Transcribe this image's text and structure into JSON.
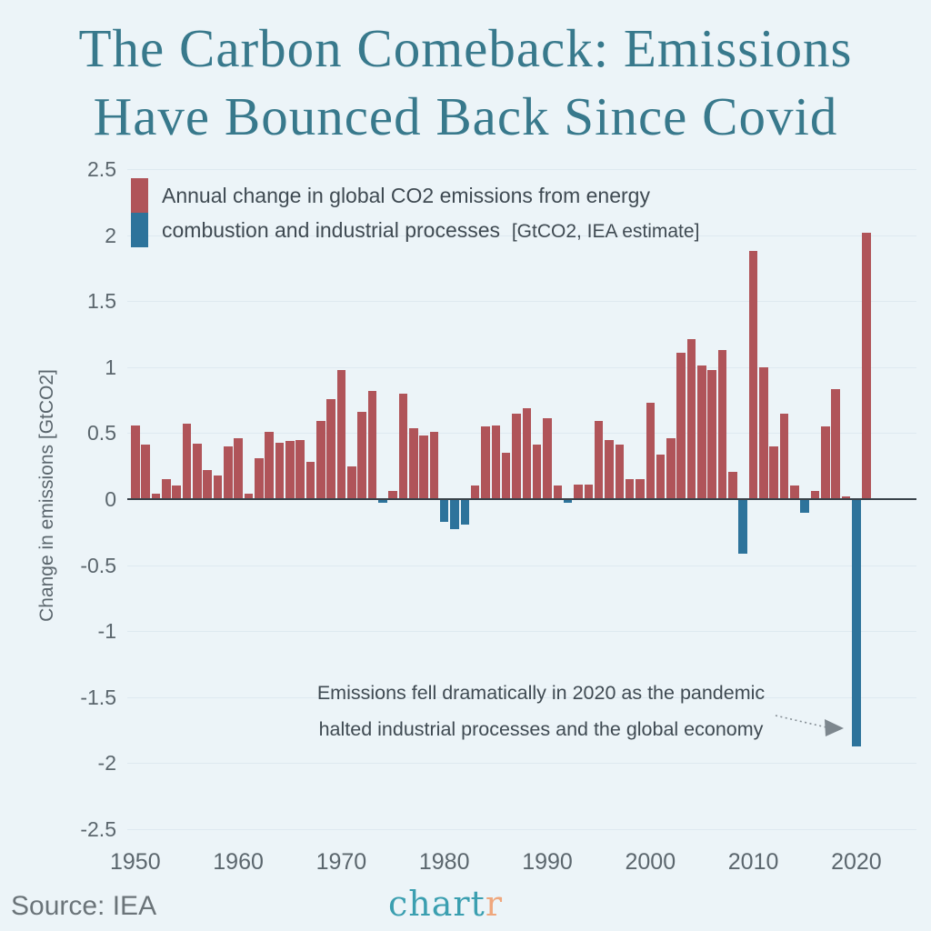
{
  "page": {
    "title_line1": "The Carbon Comeback: Emissions",
    "title_line2": "Have Bounced Back Since Covid"
  },
  "footer": {
    "source": "Source: IEA",
    "logo_part1": "chart",
    "logo_part2": "r"
  },
  "colors": {
    "background": "#ecf4f8",
    "title": "#38798c",
    "bar_positive": "#b05459",
    "bar_negative": "#2d739b",
    "grid": "#dee9f0",
    "zero": "#39424a",
    "tick": "#5b666d",
    "text": "#3f4a52",
    "source": "#6b7479",
    "logo_teal": "#3b9fb0",
    "logo_orange": "#efa77d",
    "arrow": "#868f96"
  },
  "chart_data": {
    "type": "bar",
    "title": "The Carbon Comeback: Emissions Have Bounced Back Since Covid",
    "ylabel": "Change in emissions [GtCO2]",
    "ylim": [
      -2.5,
      2.5
    ],
    "yticks": [
      2.5,
      2,
      1.5,
      1,
      0.5,
      0,
      -0.5,
      -1,
      -1.5,
      -2,
      -2.5
    ],
    "xticks": [
      1950,
      1960,
      1970,
      1980,
      1990,
      2000,
      2010,
      2020
    ],
    "grid": true,
    "legend_position": "top-left",
    "legend": {
      "line1": "Annual change in global CO2 emissions from energy",
      "line2": "combustion and industrial processes",
      "line2_note": "[GtCO2, IEA estimate]"
    },
    "annotation": {
      "line1": "Emissions fell dramatically in 2020 as the pandemic",
      "line2": "halted industrial processes and the global economy"
    },
    "years": [
      1950,
      1951,
      1952,
      1953,
      1954,
      1955,
      1956,
      1957,
      1958,
      1959,
      1960,
      1961,
      1962,
      1963,
      1964,
      1965,
      1966,
      1967,
      1968,
      1969,
      1970,
      1971,
      1972,
      1973,
      1974,
      1975,
      1976,
      1977,
      1978,
      1979,
      1980,
      1981,
      1982,
      1983,
      1984,
      1985,
      1986,
      1987,
      1988,
      1989,
      1990,
      1991,
      1992,
      1993,
      1994,
      1995,
      1996,
      1997,
      1998,
      1999,
      2000,
      2001,
      2002,
      2003,
      2004,
      2005,
      2006,
      2007,
      2008,
      2009,
      2010,
      2011,
      2012,
      2013,
      2014,
      2015,
      2016,
      2017,
      2018,
      2019,
      2020,
      2021
    ],
    "values": [
      0.56,
      0.41,
      0.04,
      0.15,
      0.1,
      0.57,
      0.42,
      0.22,
      0.18,
      0.4,
      0.46,
      0.04,
      0.31,
      0.51,
      0.43,
      0.44,
      0.45,
      0.28,
      0.59,
      0.76,
      0.98,
      0.25,
      0.66,
      0.82,
      -0.03,
      0.06,
      0.8,
      0.54,
      0.48,
      0.51,
      -0.17,
      -0.23,
      -0.19,
      0.1,
      0.55,
      0.56,
      0.35,
      0.65,
      0.69,
      0.41,
      0.61,
      0.1,
      -0.03,
      0.11,
      0.11,
      0.59,
      0.45,
      0.41,
      0.15,
      0.15,
      0.73,
      0.34,
      0.46,
      1.11,
      1.21,
      1.01,
      0.98,
      1.13,
      0.21,
      -0.41,
      1.88,
      1.0,
      0.4,
      0.65,
      0.1,
      -0.1,
      0.06,
      0.55,
      0.83,
      0.02,
      -1.87,
      2.02
    ],
    "source": "IEA"
  }
}
